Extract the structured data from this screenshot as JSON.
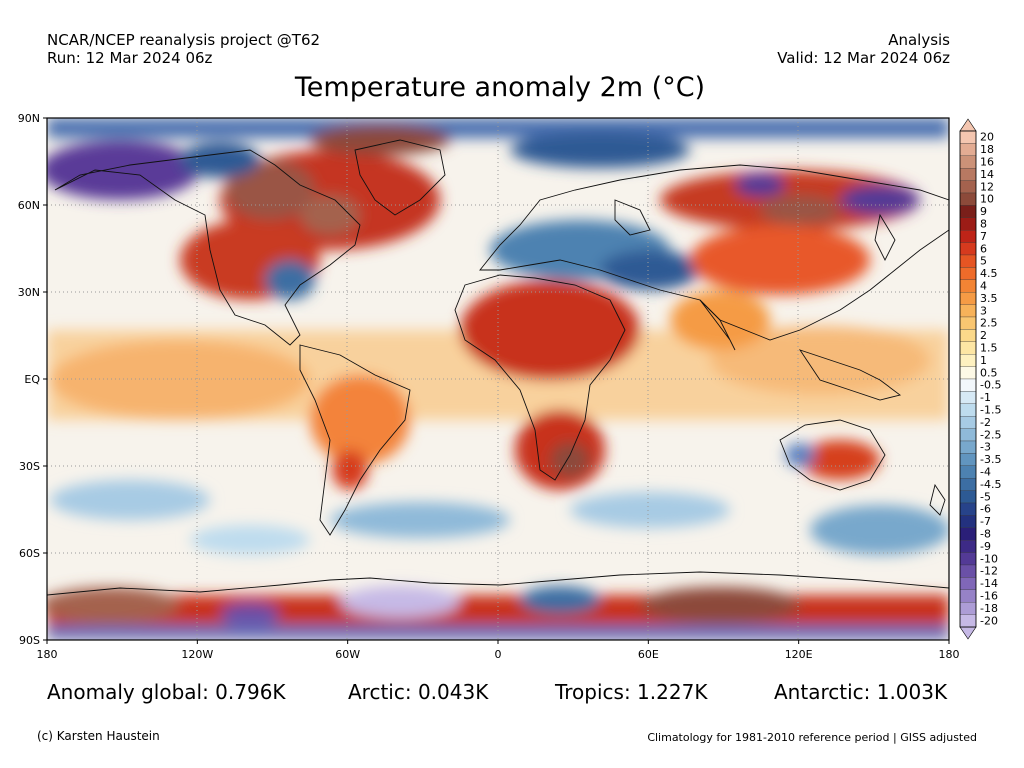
{
  "header": {
    "project": "NCAR/NCEP reanalysis project @T62",
    "run": "Run: 12 Mar 2024 06z",
    "product": "Analysis",
    "valid": "Valid: 12 Mar 2024 06z"
  },
  "title": "Temperature anomaly 2m (°C)",
  "map": {
    "lat_ticks": [
      "90N",
      "60N",
      "30N",
      "EQ",
      "30S",
      "60S",
      "90S"
    ],
    "lon_ticks": [
      "180",
      "120W",
      "60W",
      "0",
      "60E",
      "120E",
      "180"
    ]
  },
  "colorbar": {
    "labels": [
      "20",
      "18",
      "16",
      "14",
      "12",
      "10",
      "9",
      "8",
      "7",
      "6",
      "5",
      "4.5",
      "4",
      "3.5",
      "3",
      "2.5",
      "2",
      "1.5",
      "1",
      "0.5",
      "-0.5",
      "-1",
      "-1.5",
      "-2",
      "-2.5",
      "-3",
      "-3.5",
      "-4",
      "-4.5",
      "-5",
      "-6",
      "-7",
      "-8",
      "-9",
      "-10",
      "-12",
      "-14",
      "-16",
      "-18",
      "-20"
    ],
    "colors": [
      "#f4c6b0",
      "#e3ac93",
      "#cc9278",
      "#b87962",
      "#a4624e",
      "#8c4a3a",
      "#7a1f1a",
      "#9c1c16",
      "#be2418",
      "#d63a1e",
      "#e55523",
      "#ee6b2a",
      "#f28434",
      "#f59b45",
      "#f7b25a",
      "#f9c671",
      "#fbd98a",
      "#fde6a4",
      "#fef1c0",
      "#fdf9e6",
      "#f2f7fb",
      "#d6e9f5",
      "#bedcee",
      "#a7cbe4",
      "#8fbad9",
      "#78a8cc",
      "#6195bf",
      "#4d82b1",
      "#3c6ea3",
      "#2d5a94",
      "#27438a",
      "#23317f",
      "#2a1f78",
      "#3d2a86",
      "#533a96",
      "#6a50a7",
      "#8067b8",
      "#9682c7",
      "#ad9dd6",
      "#c6b9e6"
    ]
  },
  "stats": {
    "global": "Anomaly global: 0.796K",
    "arctic": "Arctic: 0.043K",
    "tropics": "Tropics: 1.227K",
    "antarctic": "Antarctic: 1.003K"
  },
  "footer": {
    "credit": "(c) Karsten Haustein",
    "note": "Climatology for 1981-2010 reference period | GISS adjusted"
  }
}
